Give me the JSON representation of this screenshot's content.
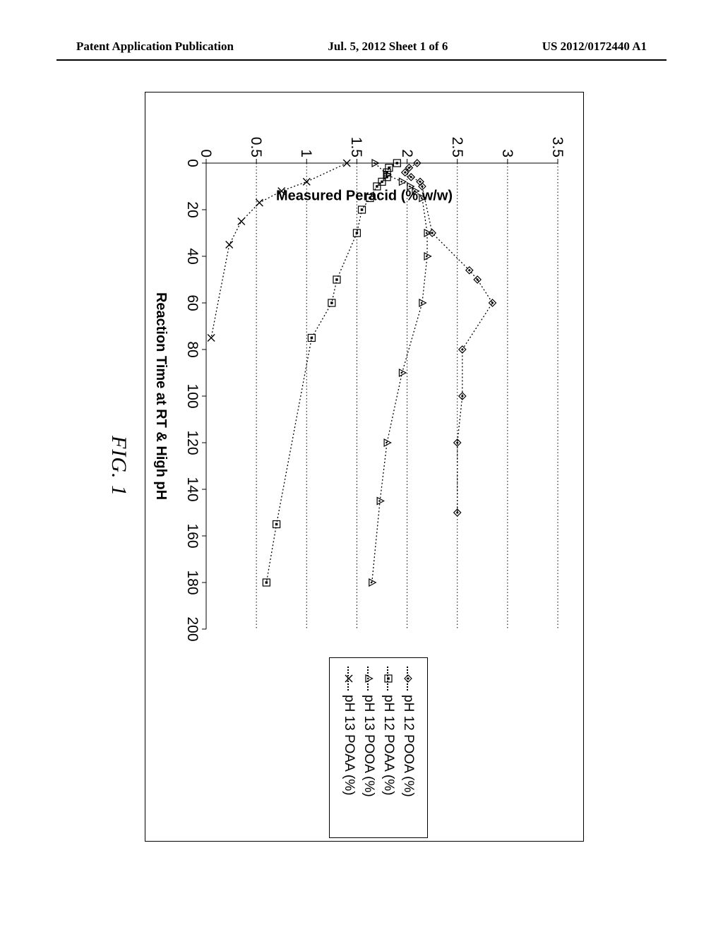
{
  "header": {
    "left": "Patent Application Publication",
    "center": "Jul. 5, 2012   Sheet 1 of 6",
    "right": "US 2012/0172440 A1"
  },
  "figure": {
    "caption": "FIG. 1",
    "ylabel": "Measured Peracid (% w/w)",
    "xlabel": "Reaction Time at RT & High pH",
    "xlim": [
      0,
      200
    ],
    "xtick_step": 20,
    "ylim": [
      0,
      3.5
    ],
    "ytick_step": 0.5,
    "grid_color": "#000000",
    "line_style": "dotted",
    "series": [
      {
        "name": "pH 12 POOA (%)",
        "marker": "diamond",
        "points": [
          [
            0,
            2.1
          ],
          [
            2,
            2.02
          ],
          [
            4,
            1.98
          ],
          [
            6,
            2.04
          ],
          [
            8,
            2.13
          ],
          [
            10,
            2.15
          ],
          [
            30,
            2.25
          ],
          [
            46,
            2.62
          ],
          [
            50,
            2.7
          ],
          [
            60,
            2.85
          ],
          [
            80,
            2.55
          ],
          [
            100,
            2.55
          ],
          [
            120,
            2.5
          ],
          [
            150,
            2.5
          ]
        ]
      },
      {
        "name": "pH 12 POAA (%)",
        "marker": "square",
        "points": [
          [
            0,
            1.9
          ],
          [
            2,
            1.82
          ],
          [
            4,
            1.8
          ],
          [
            6,
            1.8
          ],
          [
            8,
            1.75
          ],
          [
            10,
            1.7
          ],
          [
            15,
            1.63
          ],
          [
            20,
            1.55
          ],
          [
            30,
            1.5
          ],
          [
            50,
            1.3
          ],
          [
            60,
            1.25
          ],
          [
            75,
            1.05
          ],
          [
            155,
            0.7
          ],
          [
            180,
            0.6
          ]
        ]
      },
      {
        "name": "pH 13 POOA (%)",
        "marker": "triangle",
        "points": [
          [
            0,
            1.68
          ],
          [
            5,
            1.8
          ],
          [
            8,
            1.95
          ],
          [
            10,
            2.03
          ],
          [
            12,
            2.08
          ],
          [
            15,
            2.15
          ],
          [
            30,
            2.2
          ],
          [
            40,
            2.2
          ],
          [
            60,
            2.15
          ],
          [
            90,
            1.95
          ],
          [
            120,
            1.8
          ],
          [
            145,
            1.73
          ],
          [
            180,
            1.65
          ]
        ]
      },
      {
        "name": "pH 13 POAA (%)",
        "marker": "cross",
        "points": [
          [
            0,
            1.4
          ],
          [
            8,
            1.0
          ],
          [
            12,
            0.75
          ],
          [
            17,
            0.53
          ],
          [
            25,
            0.35
          ],
          [
            35,
            0.23
          ],
          [
            75,
            0.05
          ]
        ]
      }
    ],
    "chart_font": "Arial",
    "background_color": "#ffffff"
  }
}
